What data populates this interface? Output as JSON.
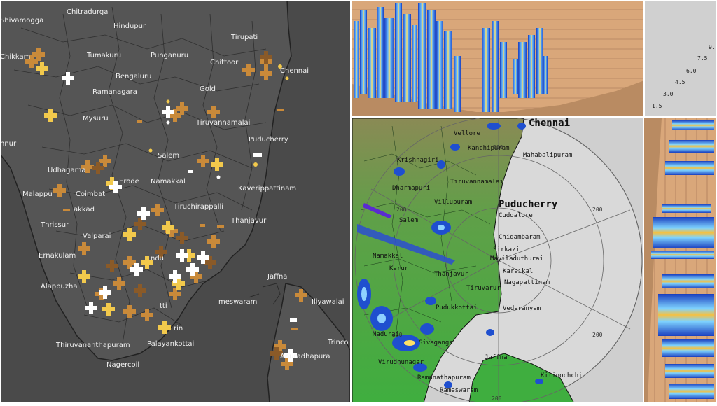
{
  "lightning_map": {
    "labels": [
      {
        "text": "Chitradurga",
        "ref": "Chitradurga"
      },
      {
        "text": "Hindupur",
        "ref": "Hindupur"
      },
      {
        "text": "Tirupati",
        "ref": "Tirupati"
      },
      {
        "text": "Shivamogga",
        "ref": "Shivamogga"
      },
      {
        "text": "Chikkam",
        "ref": "Chikkam"
      },
      {
        "text": "Tumakuru",
        "ref": "Tumakuru"
      },
      {
        "text": "Punganuru",
        "ref": "Punganuru"
      },
      {
        "text": "Chittoor",
        "ref": "Chittoor"
      },
      {
        "text": "Chennai",
        "ref": "ChennaiL"
      },
      {
        "text": "Bengaluru",
        "ref": "Bengaluru"
      },
      {
        "text": "Ramanagara",
        "ref": "Ramanagara"
      },
      {
        "text": "Gold",
        "ref": "Gold"
      },
      {
        "text": "Mysuru",
        "ref": "Mysuru"
      },
      {
        "text": "Tiruvannamalai",
        "ref": "TiruvannamalaiL"
      },
      {
        "text": "Puducherry",
        "ref": "PuducherryL"
      },
      {
        "text": "nnur",
        "ref": "nnur"
      },
      {
        "text": "Salem",
        "ref": "Salem"
      },
      {
        "text": "Udhagama",
        "ref": "Udhagama"
      },
      {
        "text": "Erode",
        "ref": "Erode"
      },
      {
        "text": "Namakkal",
        "ref": "NamakkalL"
      },
      {
        "text": "Malappu",
        "ref": "Malappu"
      },
      {
        "text": "Coimbat",
        "ref": "Coimbat"
      },
      {
        "text": "Kaverippattinam",
        "ref": "Kaverippattinam"
      },
      {
        "text": "akkad",
        "ref": "akkad"
      },
      {
        "text": "Tiruchirappalli",
        "ref": "Tiruchirappalli"
      },
      {
        "text": "Thrissur",
        "ref": "Thrissur"
      },
      {
        "text": "Thanjavur",
        "ref": "ThanjavurL"
      },
      {
        "text": "Valparai",
        "ref": "Valparai"
      },
      {
        "text": "Ernakulam",
        "ref": "Ernakulam"
      },
      {
        "text": "ndu",
        "ref": "ndu"
      },
      {
        "text": "Alappuzha",
        "ref": "Alappuzha"
      },
      {
        "text": "Jaffna",
        "ref": "JaffnaL"
      },
      {
        "text": "meswaram",
        "ref": "meswaramL"
      },
      {
        "text": "Iliyawalai",
        "ref": "Iliyawalai"
      },
      {
        "text": "tti",
        "ref": "tti"
      },
      {
        "text": "rin",
        "ref": "rin"
      },
      {
        "text": "Trinco",
        "ref": "Trinco"
      },
      {
        "text": "Thiruvananthapuram",
        "ref": "Thiruvananthapuram"
      },
      {
        "text": "Palayankottai",
        "ref": "Palayankottai"
      },
      {
        "text": "Anuradhapura",
        "ref": "Anuradhapura"
      },
      {
        "text": "Nagercoil",
        "ref": "Nagercoil"
      }
    ]
  },
  "radar": {
    "labels": [
      {
        "text": "Chennai",
        "ref": "Chennai",
        "big": true
      },
      {
        "text": "Vellore",
        "ref": "Vellore"
      },
      {
        "text": "Kanchipuram",
        "ref": "Kanchipuram"
      },
      {
        "text": "Mahabalipuram",
        "ref": "Mahabalipuram"
      },
      {
        "text": "Krishnagiri",
        "ref": "Krishnagiri"
      },
      {
        "text": "Tiruvannamalai",
        "ref": "Tiruvannamalai"
      },
      {
        "text": "Dharmapuri",
        "ref": "Dharmapuri"
      },
      {
        "text": "Villupuram",
        "ref": "Villupuram"
      },
      {
        "text": "Puducherry",
        "ref": "Puducherry",
        "big": true
      },
      {
        "text": "Cuddalore",
        "ref": "Cuddalore"
      },
      {
        "text": "Salem",
        "ref": "SalemR"
      },
      {
        "text": "Chidambaram",
        "ref": "Chidambaram"
      },
      {
        "text": "Sirkazi",
        "ref": "Sirkazi"
      },
      {
        "text": "Namakkal",
        "ref": "Namakkal"
      },
      {
        "text": "Mayiladuthurai",
        "ref": "Mayiladuthurai"
      },
      {
        "text": "Karur",
        "ref": "Karur"
      },
      {
        "text": "Karaikal",
        "ref": "Karaikal"
      },
      {
        "text": "Thanjavur",
        "ref": "Thanjavur"
      },
      {
        "text": "Nagapattinam",
        "ref": "Nagapattinam"
      },
      {
        "text": "Tiruvarur",
        "ref": "Tiruvarur"
      },
      {
        "text": "Pudukkottai",
        "ref": "Pudukkottai"
      },
      {
        "text": "Vedaranyam",
        "ref": "Vedaranyam"
      },
      {
        "text": "Madurai",
        "ref": "Madurai"
      },
      {
        "text": "Sivaganga",
        "ref": "Sivaganga"
      },
      {
        "text": "Jaffna",
        "ref": "Jaffna"
      },
      {
        "text": "Virudhunagar",
        "ref": "Virudhunagar"
      },
      {
        "text": "Kilinochchi",
        "ref": "Kilinochchi"
      },
      {
        "text": "Ramanathapuram",
        "ref": "Ramanathapuram"
      },
      {
        "text": "Rameswaram",
        "ref": "Rameswaram"
      }
    ],
    "range_rings": [
      {
        "text": "200",
        "ref": "r1"
      },
      {
        "text": "200",
        "ref": "r2"
      },
      {
        "text": "200",
        "ref": "r3"
      },
      {
        "text": "200",
        "ref": "r4"
      },
      {
        "text": "200",
        "ref": "r5"
      },
      {
        "text": "200",
        "ref": "r6"
      }
    ]
  },
  "height_scale": {
    "ticks": [
      "9.",
      "7.5",
      "6.0",
      "4.5",
      "3.0",
      "1.5"
    ]
  },
  "colors": {
    "map_bg": "#4b4b4b",
    "sea": "#5a5a5a",
    "land_green": "#3fae3f",
    "radar_disc": "#d9d9d9",
    "panel_tan": "#d9a77a"
  }
}
